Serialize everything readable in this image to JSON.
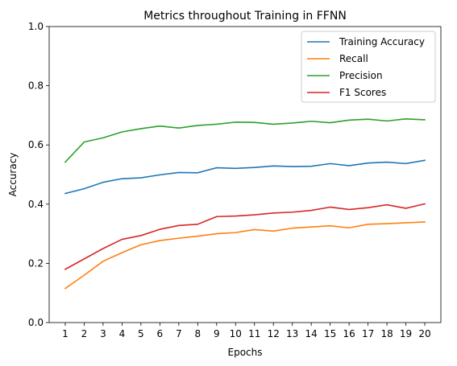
{
  "chart_data": {
    "type": "line",
    "title": "Metrics throughout Training in FFNN",
    "xlabel": "Epochs",
    "ylabel": "Accuracy",
    "x": [
      1,
      2,
      3,
      4,
      5,
      6,
      7,
      8,
      9,
      10,
      11,
      12,
      13,
      14,
      15,
      16,
      17,
      18,
      19,
      20
    ],
    "ylim": [
      0,
      1.0
    ],
    "yticks": [
      "0.0",
      "0.2",
      "0.4",
      "0.6",
      "0.8",
      "1.0"
    ],
    "grid": false,
    "legend_position": "top-right",
    "series": [
      {
        "name": "Training Accuracy",
        "color": "#1f77b4",
        "values": [
          0.436,
          0.452,
          0.474,
          0.486,
          0.489,
          0.499,
          0.507,
          0.506,
          0.523,
          0.521,
          0.524,
          0.529,
          0.527,
          0.528,
          0.537,
          0.53,
          0.539,
          0.542,
          0.537,
          0.548
        ]
      },
      {
        "name": "Recall",
        "color": "#ff7f0e",
        "values": [
          0.115,
          0.16,
          0.207,
          0.236,
          0.263,
          0.277,
          0.285,
          0.292,
          0.3,
          0.304,
          0.314,
          0.309,
          0.319,
          0.323,
          0.327,
          0.32,
          0.332,
          0.334,
          0.337,
          0.34
        ]
      },
      {
        "name": "Precision",
        "color": "#2ca02c",
        "values": [
          0.542,
          0.61,
          0.624,
          0.644,
          0.655,
          0.664,
          0.657,
          0.666,
          0.67,
          0.677,
          0.676,
          0.67,
          0.674,
          0.68,
          0.675,
          0.684,
          0.687,
          0.681,
          0.688,
          0.685
        ]
      },
      {
        "name": "F1 Scores",
        "color": "#d62728",
        "values": [
          0.18,
          0.215,
          0.25,
          0.281,
          0.294,
          0.315,
          0.328,
          0.332,
          0.358,
          0.36,
          0.364,
          0.37,
          0.373,
          0.379,
          0.39,
          0.382,
          0.388,
          0.398,
          0.386,
          0.401
        ]
      }
    ]
  }
}
